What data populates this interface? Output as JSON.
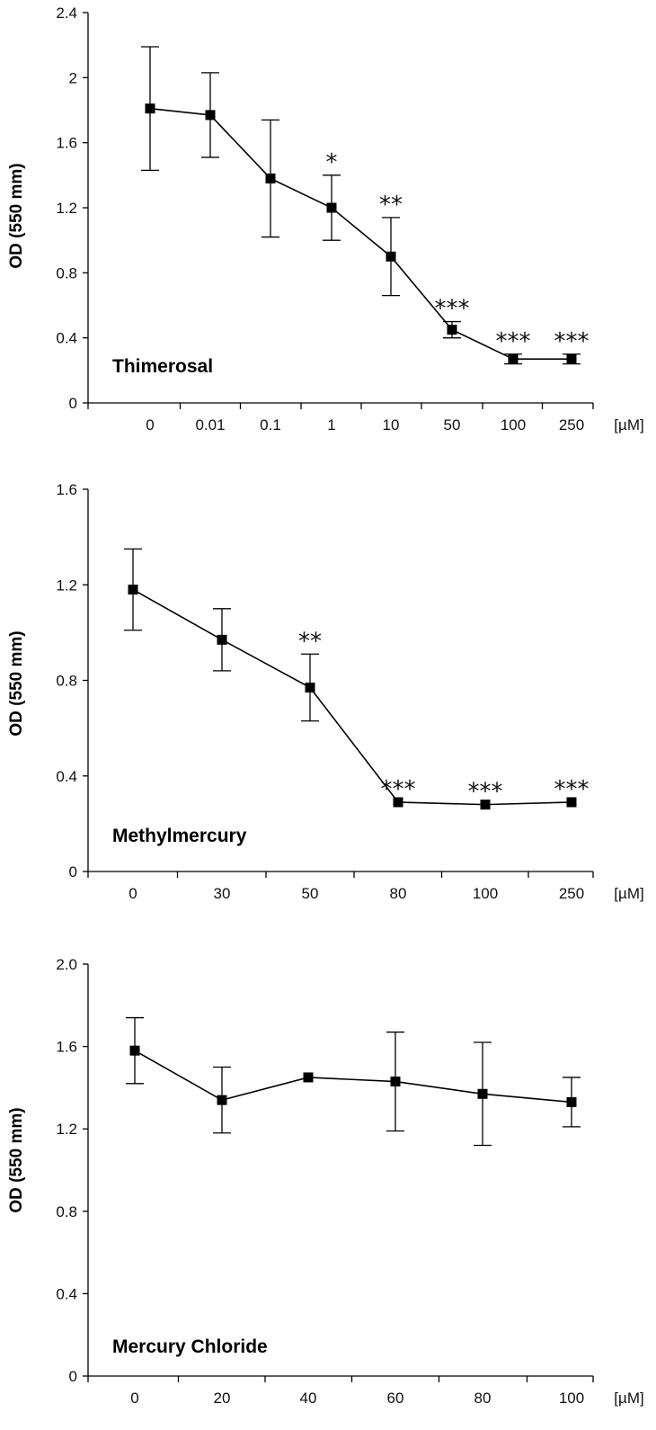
{
  "chart_data": [
    {
      "type": "line",
      "title": "Thimerosal",
      "ylabel": "OD (550 mm)",
      "xunit": "[µM]",
      "ylim": [
        0,
        2.4
      ],
      "yticks": [
        "0",
        "0.4",
        "0.8",
        "1.2",
        "1.6",
        "2",
        "2.4"
      ],
      "categories": [
        "0",
        "0.01",
        "0.1",
        "1",
        "10",
        "50",
        "100",
        "250"
      ],
      "values": [
        1.81,
        1.77,
        1.38,
        1.2,
        0.9,
        0.45,
        0.27,
        0.27
      ],
      "errors": [
        0.38,
        0.26,
        0.36,
        0.2,
        0.24,
        0.05,
        0.03,
        0.03
      ],
      "significance": [
        "",
        "",
        "",
        "*",
        "**",
        "***",
        "***",
        "***"
      ]
    },
    {
      "type": "line",
      "title": "Methylmercury",
      "ylabel": "OD (550 mm)",
      "xunit": "[µM]",
      "ylim": [
        0,
        1.6
      ],
      "yticks": [
        "0",
        "0.4",
        "0.8",
        "1.2",
        "1.6"
      ],
      "categories": [
        "0",
        "30",
        "50",
        "80",
        "100",
        "250"
      ],
      "values": [
        1.18,
        0.97,
        0.77,
        0.29,
        0.28,
        0.29
      ],
      "errors": [
        0.17,
        0.13,
        0.14,
        0.0,
        0.0,
        0.0
      ],
      "significance": [
        "",
        "",
        "**",
        "***",
        "***",
        "***"
      ]
    },
    {
      "type": "line",
      "title": "Mercury Chloride",
      "ylabel": "OD (550 mm)",
      "xunit": "[µM]",
      "ylim": [
        0,
        2.0
      ],
      "yticks": [
        "0",
        "0.4",
        "0.8",
        "1.2",
        "1.6",
        "2.0"
      ],
      "categories": [
        "0",
        "20",
        "40",
        "60",
        "80",
        "100"
      ],
      "values": [
        1.58,
        1.34,
        1.45,
        1.43,
        1.37,
        1.33
      ],
      "errors": [
        0.16,
        0.16,
        0.0,
        0.24,
        0.25,
        0.12
      ],
      "significance": [
        "",
        "",
        "",
        "",
        "",
        ""
      ]
    }
  ]
}
